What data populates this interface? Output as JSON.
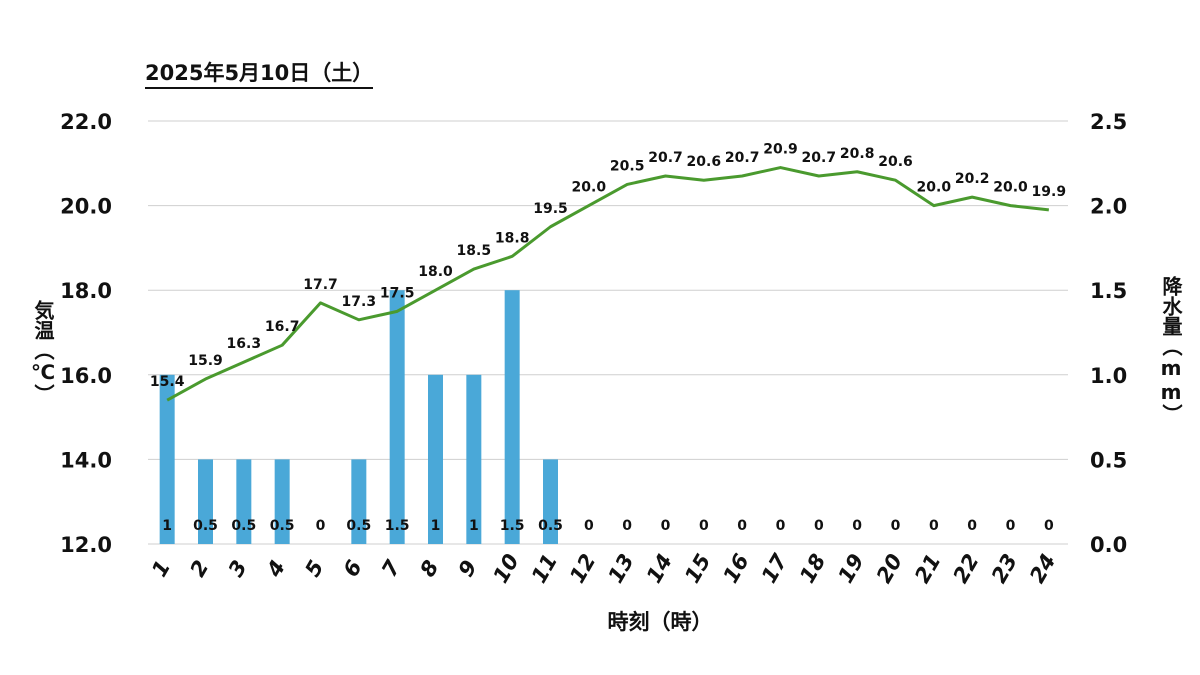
{
  "chart_data": {
    "type": "bar+line",
    "title": "2025年5月10日（土）",
    "xlabel": "時刻（時）",
    "ylabel_left": "気温（℃）",
    "ylabel_right": "降水量（mm）",
    "categories": [
      "1",
      "2",
      "3",
      "4",
      "5",
      "6",
      "7",
      "8",
      "9",
      "10",
      "11",
      "12",
      "13",
      "14",
      "15",
      "16",
      "17",
      "18",
      "19",
      "20",
      "21",
      "22",
      "23",
      "24"
    ],
    "series": [
      {
        "name": "気温",
        "kind": "line",
        "axis": "left",
        "color": "#4a9a2e",
        "values": [
          15.4,
          15.9,
          16.3,
          16.7,
          17.7,
          17.3,
          17.5,
          18.0,
          18.5,
          18.8,
          19.5,
          20.0,
          20.5,
          20.7,
          20.6,
          20.7,
          20.9,
          20.7,
          20.8,
          20.6,
          20.0,
          20.2,
          20.0,
          19.9
        ],
        "labels": [
          "15.4",
          "15.9",
          "16.3",
          "16.7",
          "17.7",
          "17.3",
          "17.5",
          "18.0",
          "18.5",
          "18.8",
          "19.5",
          "20.0",
          "20.5",
          "20.7",
          "20.6",
          "20.7",
          "20.9",
          "20.7",
          "20.8",
          "20.6",
          "20.0",
          "20.2",
          "20.0",
          "19.9"
        ]
      },
      {
        "name": "降水量",
        "kind": "bar",
        "axis": "right",
        "color": "#4aa8d8",
        "values": [
          1,
          0.5,
          0.5,
          0.5,
          0,
          0.5,
          1.5,
          1,
          1,
          1.5,
          0.5,
          0,
          0,
          0,
          0,
          0,
          0,
          0,
          0,
          0,
          0,
          0,
          0,
          0
        ],
        "labels": [
          "1",
          "0.5",
          "0.5",
          "0.5",
          "0",
          "0.5",
          "1.5",
          "1",
          "1",
          "1.5",
          "0.5",
          "0",
          "0",
          "0",
          "0",
          "0",
          "0",
          "0",
          "0",
          "0",
          "0",
          "0",
          "0",
          "0"
        ]
      }
    ],
    "ylim_left": [
      12.0,
      22.0
    ],
    "ylim_right": [
      0.0,
      2.5
    ],
    "yticks_left": [
      "12.0",
      "14.0",
      "16.0",
      "18.0",
      "20.0",
      "22.0"
    ],
    "yticks_right": [
      "0.0",
      "0.5",
      "1.0",
      "1.5",
      "2.0",
      "2.5"
    ],
    "grid": true,
    "legend": "none"
  }
}
